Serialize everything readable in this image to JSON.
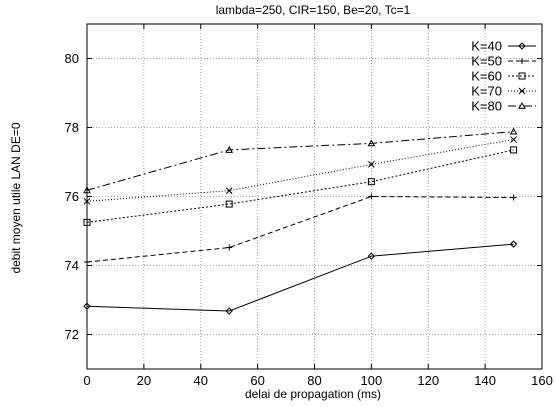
{
  "chart_data": {
    "type": "line",
    "title": "lambda=250, CIR=150, Be=20, Tc=1",
    "xlabel": "delai de propagation (ms)",
    "ylabel": "debit moyen utile LAN DE=0",
    "xlim": [
      0,
      160
    ],
    "ylim": [
      71,
      81
    ],
    "xticks": [
      0,
      20,
      40,
      60,
      80,
      100,
      120,
      140,
      160
    ],
    "yticks": [
      72,
      74,
      76,
      78,
      80
    ],
    "grid": true,
    "legend_position": "top-right",
    "series": [
      {
        "name": "K=40",
        "marker": "diamond",
        "dash": "",
        "x": [
          0,
          50,
          100,
          150
        ],
        "y": [
          72.82,
          72.68,
          74.27,
          74.62
        ]
      },
      {
        "name": "K=50",
        "marker": "plus",
        "dash": "5,3",
        "x": [
          0,
          50,
          100,
          150
        ],
        "y": [
          74.1,
          74.52,
          76.0,
          75.97
        ]
      },
      {
        "name": "K=60",
        "marker": "square",
        "dash": "2,2",
        "x": [
          0,
          50,
          100,
          150
        ],
        "y": [
          75.25,
          75.78,
          76.43,
          77.35
        ]
      },
      {
        "name": "K=70",
        "marker": "cross",
        "dash": "1,2",
        "x": [
          0,
          50,
          100,
          150
        ],
        "y": [
          75.86,
          76.17,
          76.93,
          77.65
        ]
      },
      {
        "name": "K=80",
        "marker": "triangle",
        "dash": "8,3,2,3",
        "x": [
          0,
          50,
          100,
          150
        ],
        "y": [
          76.18,
          77.35,
          77.54,
          77.88
        ]
      }
    ]
  }
}
